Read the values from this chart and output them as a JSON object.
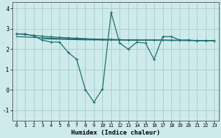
{
  "xlabel": "Humidex (Indice chaleur)",
  "background_color": "#ceeaea",
  "grid_color": "#aacfcf",
  "line_color": "#1a6b6b",
  "xlim": [
    -0.5,
    23.5
  ],
  "ylim": [
    -1.5,
    4.3
  ],
  "yticks": [
    -1,
    0,
    1,
    2,
    3,
    4
  ],
  "xticks": [
    0,
    1,
    2,
    3,
    4,
    5,
    6,
    7,
    8,
    9,
    10,
    11,
    12,
    13,
    14,
    15,
    16,
    17,
    18,
    19,
    20,
    21,
    22,
    23
  ],
  "s1_x": [
    0,
    1,
    2,
    3,
    4,
    5,
    6,
    7,
    8,
    9,
    10,
    11,
    12,
    13,
    14,
    15,
    16,
    17,
    18,
    19,
    20,
    21,
    22,
    23
  ],
  "s1_y": [
    2.75,
    2.75,
    2.65,
    2.45,
    2.35,
    2.35,
    1.85,
    1.5,
    0.02,
    -0.6,
    0.05,
    3.8,
    2.3,
    2.0,
    2.35,
    2.3,
    1.5,
    2.62,
    2.62,
    2.45,
    2.45,
    2.42,
    2.42,
    2.42
  ],
  "s2_x": [
    0,
    1,
    2,
    3,
    4,
    5,
    6,
    7,
    8,
    9,
    10,
    11,
    12,
    13,
    14,
    15,
    16,
    17,
    18,
    19,
    20,
    21,
    22,
    23
  ],
  "s2_y": [
    2.75,
    2.72,
    2.68,
    2.64,
    2.61,
    2.58,
    2.56,
    2.54,
    2.52,
    2.5,
    2.49,
    2.48,
    2.47,
    2.46,
    2.46,
    2.45,
    2.45,
    2.45,
    2.44,
    2.44,
    2.44,
    2.43,
    2.43,
    2.43
  ],
  "s3_x": [
    0,
    1,
    2,
    3,
    4,
    5,
    6,
    7,
    8,
    9,
    10,
    11,
    12,
    13,
    14,
    15,
    16,
    17,
    18,
    19,
    20,
    21,
    22,
    23
  ],
  "s3_y": [
    2.62,
    2.6,
    2.58,
    2.56,
    2.54,
    2.52,
    2.51,
    2.5,
    2.49,
    2.48,
    2.47,
    2.47,
    2.46,
    2.46,
    2.45,
    2.45,
    2.45,
    2.44,
    2.44,
    2.44,
    2.43,
    2.43,
    2.43,
    2.43
  ],
  "s4_x": [
    3,
    4,
    5,
    6,
    7,
    8,
    9,
    10,
    11,
    12,
    13,
    14,
    15,
    16,
    17,
    18,
    19,
    20,
    21,
    22,
    23
  ],
  "s4_y": [
    2.52,
    2.5,
    2.49,
    2.48,
    2.47,
    2.46,
    2.46,
    2.45,
    2.45,
    2.45,
    2.44,
    2.44,
    2.44,
    2.44,
    2.44,
    2.43,
    2.43,
    2.43,
    2.43,
    2.43,
    2.43
  ]
}
